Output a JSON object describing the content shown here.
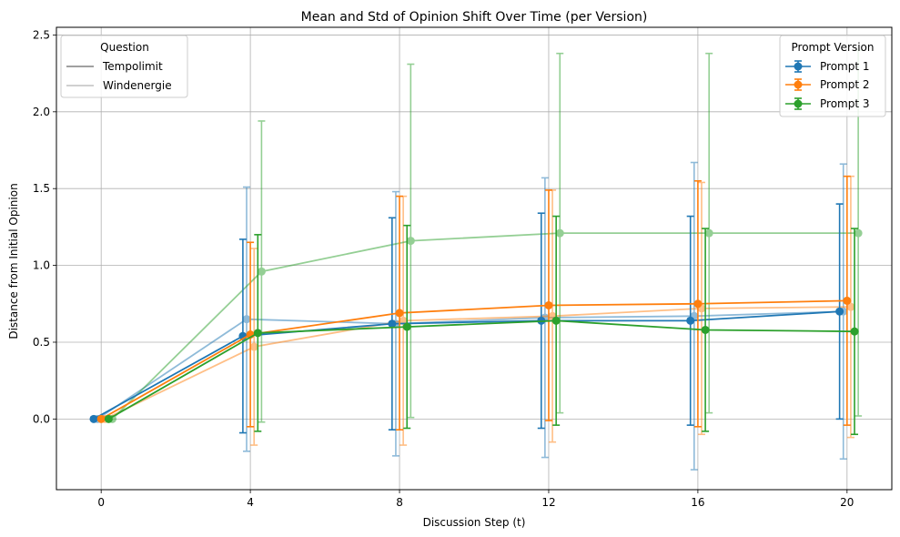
{
  "chart_data": {
    "type": "line",
    "title": "Mean and Std of Opinion Shift Over Time (per Version)",
    "xlabel": "Discussion Step (t)",
    "ylabel": "Distance from Initial Opinion",
    "xlim": [
      -1.2,
      21.2
    ],
    "ylim": [
      -0.46,
      2.55
    ],
    "xticks": [
      0,
      4,
      8,
      12,
      16,
      20
    ],
    "yticks": [
      0.0,
      0.5,
      1.0,
      1.5,
      2.0,
      2.5
    ],
    "ytick_labels": [
      "0.0",
      "0.5",
      "1.0",
      "1.5",
      "2.0",
      "2.5"
    ],
    "grid": true,
    "x": [
      0,
      4,
      8,
      12,
      16,
      20
    ],
    "series": [
      {
        "name": "Prompt 1",
        "question": "Tempolimit",
        "color": "#1f77b4",
        "opacity": 1.0,
        "offset": -0.2,
        "values": [
          0.0,
          0.54,
          0.62,
          0.64,
          0.64,
          0.7
        ],
        "std": [
          0.0,
          0.63,
          0.69,
          0.7,
          0.68,
          0.7
        ]
      },
      {
        "name": "Prompt 2",
        "question": "Tempolimit",
        "color": "#ff7f0e",
        "opacity": 1.0,
        "offset": 0.0,
        "values": [
          0.0,
          0.55,
          0.69,
          0.74,
          0.75,
          0.77
        ],
        "std": [
          0.0,
          0.6,
          0.76,
          0.75,
          0.8,
          0.81
        ]
      },
      {
        "name": "Prompt 3",
        "question": "Tempolimit",
        "color": "#2ca02c",
        "opacity": 1.0,
        "offset": 0.2,
        "values": [
          0.0,
          0.56,
          0.6,
          0.64,
          0.58,
          0.57
        ],
        "std": [
          0.0,
          0.64,
          0.66,
          0.68,
          0.66,
          0.67
        ]
      },
      {
        "name": "Prompt 1",
        "question": "Windenergie",
        "color": "#1f77b4",
        "opacity": 0.5,
        "offset": -0.1,
        "values": [
          0.0,
          0.65,
          0.62,
          0.66,
          0.67,
          0.7
        ],
        "std": [
          0.0,
          0.86,
          0.86,
          0.91,
          1.0,
          0.96
        ]
      },
      {
        "name": "Prompt 2",
        "question": "Windenergie",
        "color": "#ff7f0e",
        "opacity": 0.5,
        "offset": 0.1,
        "values": [
          0.0,
          0.47,
          0.64,
          0.67,
          0.72,
          0.73
        ],
        "std": [
          0.0,
          0.64,
          0.81,
          0.82,
          0.82,
          0.85
        ]
      },
      {
        "name": "Prompt 3",
        "question": "Windenergie",
        "color": "#2ca02c",
        "opacity": 0.5,
        "offset": 0.3,
        "values": [
          0.0,
          0.96,
          1.16,
          1.21,
          1.21,
          1.21
        ],
        "std": [
          0.0,
          0.98,
          1.15,
          1.17,
          1.17,
          1.19
        ]
      }
    ],
    "legend_question": {
      "title": "Question",
      "placement": "top-left",
      "entries": [
        {
          "label": "Tempolimit",
          "color": "#808080"
        },
        {
          "label": "Windenergie",
          "color": "#c0c0c0"
        }
      ]
    },
    "legend_prompt": {
      "title": "Prompt Version",
      "placement": "top-right",
      "entries": [
        {
          "label": "Prompt 1",
          "color": "#1f77b4"
        },
        {
          "label": "Prompt 2",
          "color": "#ff7f0e"
        },
        {
          "label": "Prompt 3",
          "color": "#2ca02c"
        }
      ]
    }
  }
}
